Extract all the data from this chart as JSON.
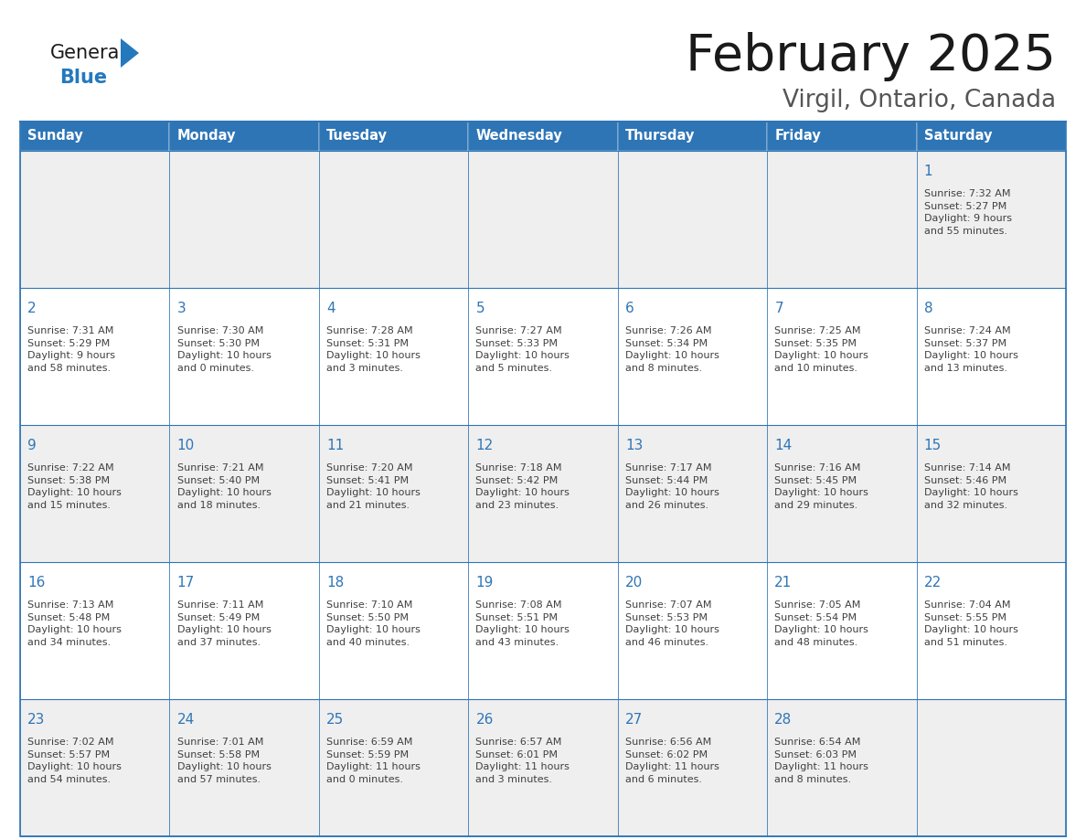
{
  "title": "February 2025",
  "subtitle": "Virgil, Ontario, Canada",
  "header_bg": "#2E75B6",
  "header_text_color": "#FFFFFF",
  "cell_bg_white": "#FFFFFF",
  "cell_bg_gray": "#F0F0F0",
  "border_color": "#2E75B6",
  "title_color": "#1A1A1A",
  "day_number_color": "#2E75B6",
  "text_color": "#404040",
  "days_of_week": [
    "Sunday",
    "Monday",
    "Tuesday",
    "Wednesday",
    "Thursday",
    "Friday",
    "Saturday"
  ],
  "weeks": [
    [
      {
        "day": "",
        "info": ""
      },
      {
        "day": "",
        "info": ""
      },
      {
        "day": "",
        "info": ""
      },
      {
        "day": "",
        "info": ""
      },
      {
        "day": "",
        "info": ""
      },
      {
        "day": "",
        "info": ""
      },
      {
        "day": "1",
        "info": "Sunrise: 7:32 AM\nSunset: 5:27 PM\nDaylight: 9 hours\nand 55 minutes."
      }
    ],
    [
      {
        "day": "2",
        "info": "Sunrise: 7:31 AM\nSunset: 5:29 PM\nDaylight: 9 hours\nand 58 minutes."
      },
      {
        "day": "3",
        "info": "Sunrise: 7:30 AM\nSunset: 5:30 PM\nDaylight: 10 hours\nand 0 minutes."
      },
      {
        "day": "4",
        "info": "Sunrise: 7:28 AM\nSunset: 5:31 PM\nDaylight: 10 hours\nand 3 minutes."
      },
      {
        "day": "5",
        "info": "Sunrise: 7:27 AM\nSunset: 5:33 PM\nDaylight: 10 hours\nand 5 minutes."
      },
      {
        "day": "6",
        "info": "Sunrise: 7:26 AM\nSunset: 5:34 PM\nDaylight: 10 hours\nand 8 minutes."
      },
      {
        "day": "7",
        "info": "Sunrise: 7:25 AM\nSunset: 5:35 PM\nDaylight: 10 hours\nand 10 minutes."
      },
      {
        "day": "8",
        "info": "Sunrise: 7:24 AM\nSunset: 5:37 PM\nDaylight: 10 hours\nand 13 minutes."
      }
    ],
    [
      {
        "day": "9",
        "info": "Sunrise: 7:22 AM\nSunset: 5:38 PM\nDaylight: 10 hours\nand 15 minutes."
      },
      {
        "day": "10",
        "info": "Sunrise: 7:21 AM\nSunset: 5:40 PM\nDaylight: 10 hours\nand 18 minutes."
      },
      {
        "day": "11",
        "info": "Sunrise: 7:20 AM\nSunset: 5:41 PM\nDaylight: 10 hours\nand 21 minutes."
      },
      {
        "day": "12",
        "info": "Sunrise: 7:18 AM\nSunset: 5:42 PM\nDaylight: 10 hours\nand 23 minutes."
      },
      {
        "day": "13",
        "info": "Sunrise: 7:17 AM\nSunset: 5:44 PM\nDaylight: 10 hours\nand 26 minutes."
      },
      {
        "day": "14",
        "info": "Sunrise: 7:16 AM\nSunset: 5:45 PM\nDaylight: 10 hours\nand 29 minutes."
      },
      {
        "day": "15",
        "info": "Sunrise: 7:14 AM\nSunset: 5:46 PM\nDaylight: 10 hours\nand 32 minutes."
      }
    ],
    [
      {
        "day": "16",
        "info": "Sunrise: 7:13 AM\nSunset: 5:48 PM\nDaylight: 10 hours\nand 34 minutes."
      },
      {
        "day": "17",
        "info": "Sunrise: 7:11 AM\nSunset: 5:49 PM\nDaylight: 10 hours\nand 37 minutes."
      },
      {
        "day": "18",
        "info": "Sunrise: 7:10 AM\nSunset: 5:50 PM\nDaylight: 10 hours\nand 40 minutes."
      },
      {
        "day": "19",
        "info": "Sunrise: 7:08 AM\nSunset: 5:51 PM\nDaylight: 10 hours\nand 43 minutes."
      },
      {
        "day": "20",
        "info": "Sunrise: 7:07 AM\nSunset: 5:53 PM\nDaylight: 10 hours\nand 46 minutes."
      },
      {
        "day": "21",
        "info": "Sunrise: 7:05 AM\nSunset: 5:54 PM\nDaylight: 10 hours\nand 48 minutes."
      },
      {
        "day": "22",
        "info": "Sunrise: 7:04 AM\nSunset: 5:55 PM\nDaylight: 10 hours\nand 51 minutes."
      }
    ],
    [
      {
        "day": "23",
        "info": "Sunrise: 7:02 AM\nSunset: 5:57 PM\nDaylight: 10 hours\nand 54 minutes."
      },
      {
        "day": "24",
        "info": "Sunrise: 7:01 AM\nSunset: 5:58 PM\nDaylight: 10 hours\nand 57 minutes."
      },
      {
        "day": "25",
        "info": "Sunrise: 6:59 AM\nSunset: 5:59 PM\nDaylight: 11 hours\nand 0 minutes."
      },
      {
        "day": "26",
        "info": "Sunrise: 6:57 AM\nSunset: 6:01 PM\nDaylight: 11 hours\nand 3 minutes."
      },
      {
        "day": "27",
        "info": "Sunrise: 6:56 AM\nSunset: 6:02 PM\nDaylight: 11 hours\nand 6 minutes."
      },
      {
        "day": "28",
        "info": "Sunrise: 6:54 AM\nSunset: 6:03 PM\nDaylight: 11 hours\nand 8 minutes."
      },
      {
        "day": "",
        "info": ""
      }
    ]
  ],
  "logo_general_color": "#1A1A1A",
  "logo_blue_color": "#2479BD",
  "row_bg_colors": [
    "#EFEFEF",
    "#FFFFFF",
    "#EFEFEF",
    "#FFFFFF",
    "#EFEFEF"
  ]
}
